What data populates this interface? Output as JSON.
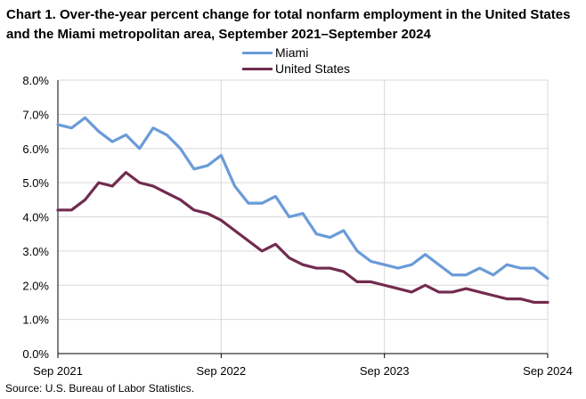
{
  "chart_data": {
    "type": "line",
    "title": "Chart 1. Over-the-year percent change for total nonfarm employment in the United States and the Miami metropolitan area, September 2021–September 2024",
    "xlabel": "",
    "ylabel": "",
    "source": "Source: U.S. Bureau of Labor Statistics.",
    "legend_position": "top-center",
    "ylim": [
      0,
      8
    ],
    "yticks": [
      0,
      1,
      2,
      3,
      4,
      5,
      6,
      7,
      8
    ],
    "ytick_labels": [
      "0.0%",
      "1.0%",
      "2.0%",
      "3.0%",
      "4.0%",
      "5.0%",
      "6.0%",
      "7.0%",
      "8.0%"
    ],
    "xticks": [
      0,
      12,
      24,
      36
    ],
    "xtick_labels": [
      "Sep 2021",
      "Sep 2022",
      "Sep 2023",
      "Sep 2024"
    ],
    "x": [
      "Sep 2021",
      "Oct 2021",
      "Nov 2021",
      "Dec 2021",
      "Jan 2022",
      "Feb 2022",
      "Mar 2022",
      "Apr 2022",
      "May 2022",
      "Jun 2022",
      "Jul 2022",
      "Aug 2022",
      "Sep 2022",
      "Oct 2022",
      "Nov 2022",
      "Dec 2022",
      "Jan 2023",
      "Feb 2023",
      "Mar 2023",
      "Apr 2023",
      "May 2023",
      "Jun 2023",
      "Jul 2023",
      "Aug 2023",
      "Sep 2023",
      "Oct 2023",
      "Nov 2023",
      "Dec 2023",
      "Jan 2024",
      "Feb 2024",
      "Mar 2024",
      "Apr 2024",
      "May 2024",
      "Jun 2024",
      "Jul 2024",
      "Aug 2024",
      "Sep 2024"
    ],
    "series": [
      {
        "name": "Miami",
        "color": "#6a9bd8",
        "values": [
          6.7,
          6.6,
          6.9,
          6.5,
          6.2,
          6.4,
          6.0,
          6.6,
          6.4,
          6.0,
          5.4,
          5.5,
          5.8,
          4.9,
          4.4,
          4.4,
          4.6,
          4.0,
          4.1,
          3.5,
          3.4,
          3.6,
          3.0,
          2.7,
          2.6,
          2.5,
          2.6,
          2.9,
          2.6,
          2.3,
          2.3,
          2.5,
          2.3,
          2.6,
          2.5,
          2.5,
          2.2
        ]
      },
      {
        "name": "United States",
        "color": "#722b4f",
        "values": [
          4.2,
          4.2,
          4.5,
          5.0,
          4.9,
          5.3,
          5.0,
          4.9,
          4.7,
          4.5,
          4.2,
          4.1,
          3.9,
          3.6,
          3.3,
          3.0,
          3.2,
          2.8,
          2.6,
          2.5,
          2.5,
          2.4,
          2.1,
          2.1,
          2.0,
          1.9,
          1.8,
          2.0,
          1.8,
          1.8,
          1.9,
          1.8,
          1.7,
          1.6,
          1.6,
          1.5,
          1.5
        ]
      }
    ]
  }
}
